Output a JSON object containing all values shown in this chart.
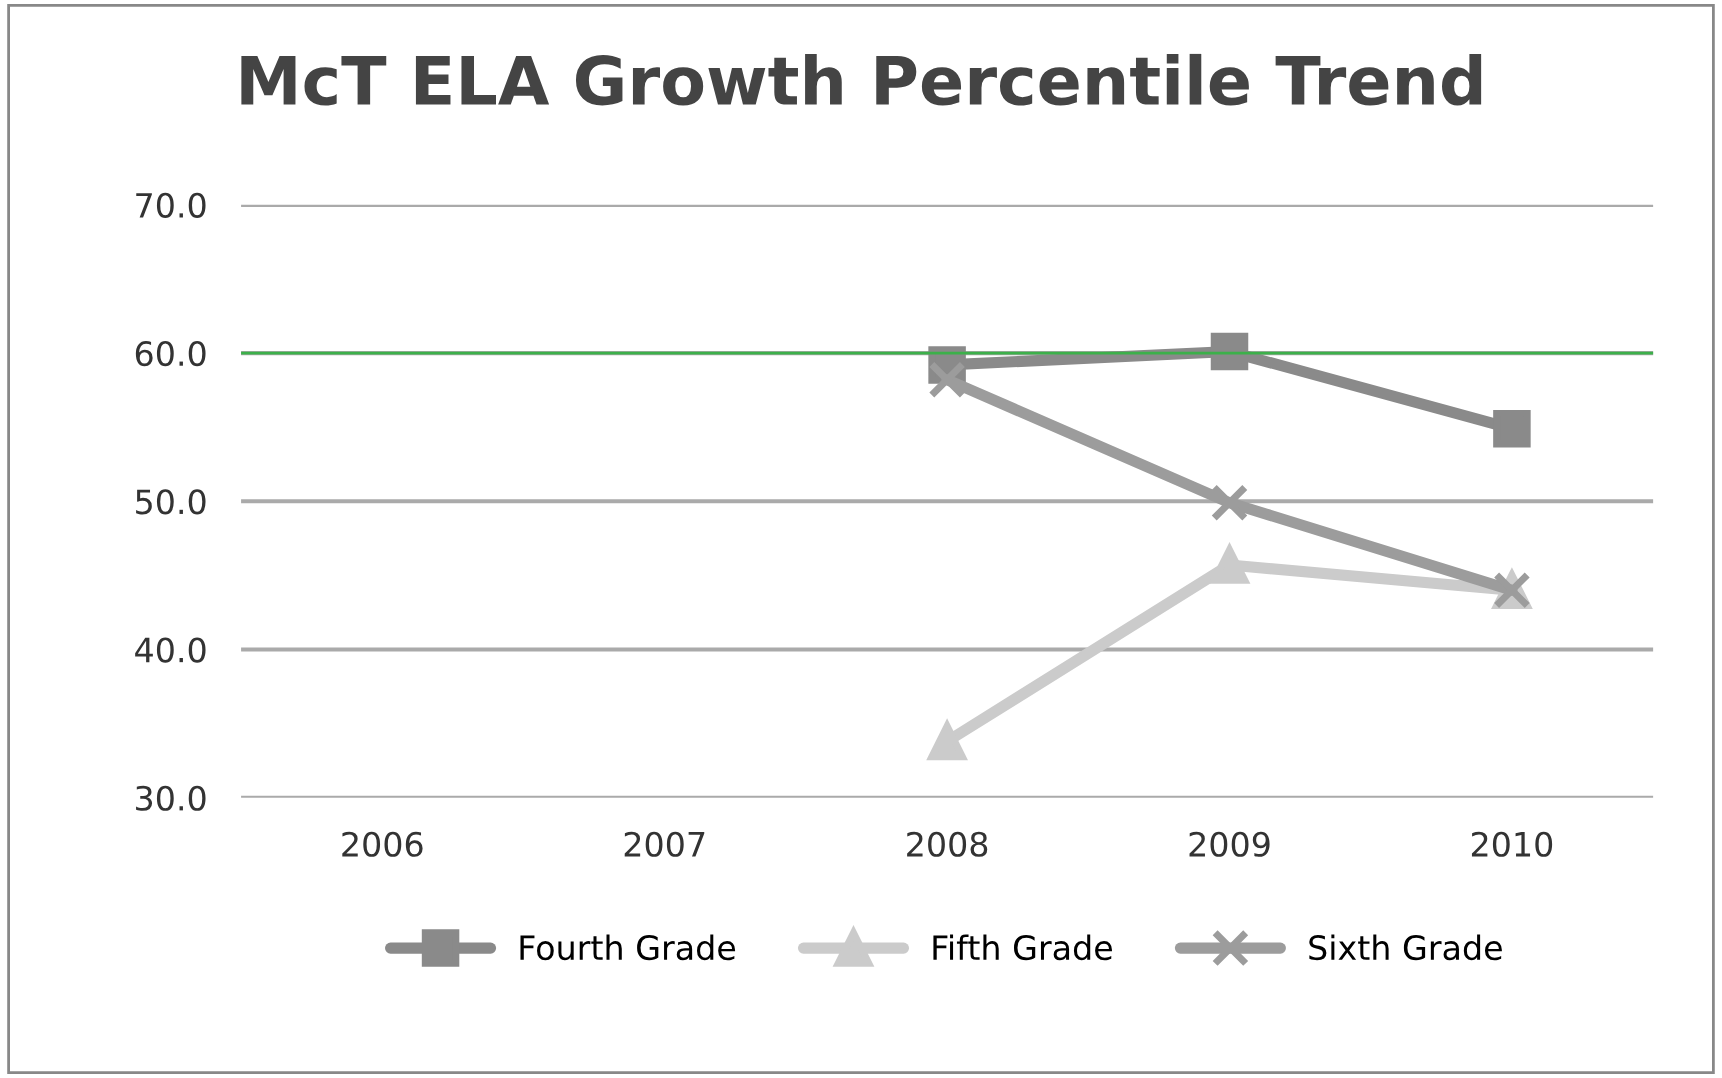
{
  "chart_data": {
    "type": "line",
    "title": "McT ELA Growth Percentile Trend",
    "categories": [
      "2006",
      "2007",
      "2008",
      "2009",
      "2010"
    ],
    "series": [
      {
        "name": "Fourth Grade",
        "color": "#8a8a8a",
        "marker": "square",
        "values": [
          null,
          null,
          59.2,
          60.1,
          54.9
        ]
      },
      {
        "name": "Fifth Grade",
        "color": "#cbcbcb",
        "marker": "triangle",
        "values": [
          null,
          null,
          33.8,
          45.7,
          44.0
        ]
      },
      {
        "name": "Sixth Grade",
        "color": "#9c9c9c",
        "marker": "cross",
        "values": [
          null,
          null,
          58.2,
          49.9,
          44.0
        ]
      }
    ],
    "ylim": [
      30,
      70
    ],
    "yticks": [
      {
        "value": 30,
        "label": "30.0"
      },
      {
        "value": 40,
        "label": "40.0"
      },
      {
        "value": 50,
        "label": "50.0"
      },
      {
        "value": 60,
        "label": "60.0"
      },
      {
        "value": 70,
        "label": "70.0"
      }
    ],
    "grid": "y",
    "legend": "bottom",
    "line_style": "solid",
    "ref_lines": [
      {
        "axis": "y",
        "value": 60,
        "color": "#3cb04a",
        "line_style": "solid"
      }
    ]
  }
}
